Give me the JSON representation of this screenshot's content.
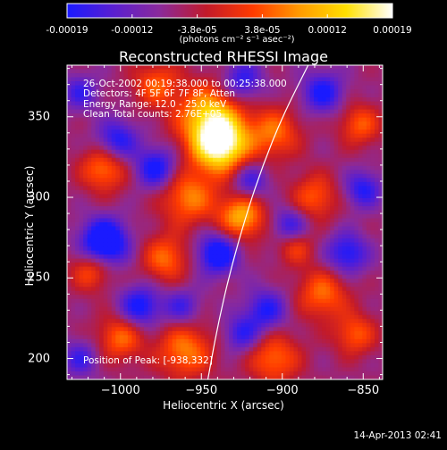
{
  "colorbar": {
    "ticks": [
      "-0.00019",
      "-0.00012",
      "-3.8e-05",
      "3.8e-05",
      "0.00012",
      "0.00019"
    ],
    "unit": "(photons cm⁻² s⁻¹ asec⁻²)",
    "range": [
      -0.00019,
      0.00019
    ],
    "colormap": [
      "#1a1aff",
      "#5a1fd0",
      "#8b2a9a",
      "#c21a2a",
      "#ff3b00",
      "#ff9a00",
      "#ffe000",
      "#ffffff"
    ]
  },
  "title": "Reconstructed RHESSI Image",
  "annotations": {
    "time": "26-Oct-2002 00:19:38.000 to 00:25:38.000",
    "detectors": "Detectors: 4F 5F 6F 7F 8F, Atten",
    "energy": "Energy Range: 12.0 - 25.0 keV",
    "clean": "Clean    Total counts: 2.76E+05",
    "peak": "Position of Peak: [-938,332]"
  },
  "footer": {
    "date": "14-Apr-2013 02:41"
  },
  "chart_data": {
    "type": "heatmap",
    "title": "Reconstructed RHESSI Image",
    "xlabel": "Heliocentric X (arcsec)",
    "ylabel": "Heliocentric Y (arcsec)",
    "xlim": [
      -1033,
      -838
    ],
    "ylim": [
      187,
      382
    ],
    "xticks": [
      -1000,
      -950,
      -900,
      -850
    ],
    "yticks": [
      200,
      250,
      300,
      350
    ],
    "xtick_labels": [
      "−1000",
      "−950",
      "−900",
      "−850"
    ],
    "ytick_labels": [
      "200",
      "250",
      "300",
      "350"
    ],
    "peak_position": [
      -938,
      332
    ],
    "limb_curve": [
      [
        -946,
        187
      ],
      [
        -940,
        220
      ],
      [
        -932,
        255
      ],
      [
        -922,
        290
      ],
      [
        -912,
        320
      ],
      [
        -900,
        350
      ],
      [
        -884,
        382
      ]
    ],
    "blobs": [
      {
        "x": -938,
        "y": 332,
        "v": 1.0,
        "s": 12
      },
      {
        "x": -945,
        "y": 350,
        "v": 0.75,
        "s": 14
      },
      {
        "x": -925,
        "y": 288,
        "v": 0.7,
        "s": 10
      },
      {
        "x": -958,
        "y": 300,
        "v": 0.55,
        "s": 12
      },
      {
        "x": -1010,
        "y": 318,
        "v": 0.55,
        "s": 10
      },
      {
        "x": -1018,
        "y": 255,
        "v": 0.45,
        "s": 9
      },
      {
        "x": -972,
        "y": 262,
        "v": 0.5,
        "s": 10
      },
      {
        "x": -960,
        "y": 205,
        "v": 0.55,
        "s": 12
      },
      {
        "x": -1000,
        "y": 213,
        "v": 0.5,
        "s": 10
      },
      {
        "x": -905,
        "y": 340,
        "v": 0.5,
        "s": 11
      },
      {
        "x": -880,
        "y": 300,
        "v": 0.45,
        "s": 10
      },
      {
        "x": -852,
        "y": 345,
        "v": 0.45,
        "s": 9
      },
      {
        "x": -875,
        "y": 240,
        "v": 0.5,
        "s": 11
      },
      {
        "x": -905,
        "y": 200,
        "v": 0.5,
        "s": 11
      },
      {
        "x": -855,
        "y": 215,
        "v": 0.45,
        "s": 9
      },
      {
        "x": -892,
        "y": 270,
        "v": 0.4,
        "s": 8
      },
      {
        "x": -978,
        "y": 370,
        "v": 0.45,
        "s": 10
      },
      {
        "x": -1002,
        "y": 335,
        "v": -0.55,
        "s": 9
      },
      {
        "x": -1010,
        "y": 272,
        "v": -0.9,
        "s": 10
      },
      {
        "x": -978,
        "y": 318,
        "v": -0.6,
        "s": 9
      },
      {
        "x": -940,
        "y": 265,
        "v": -0.7,
        "s": 9
      },
      {
        "x": -988,
        "y": 232,
        "v": -0.6,
        "s": 9
      },
      {
        "x": -962,
        "y": 232,
        "v": -0.4,
        "s": 8
      },
      {
        "x": -920,
        "y": 310,
        "v": -0.45,
        "s": 8
      },
      {
        "x": -875,
        "y": 365,
        "v": -0.55,
        "s": 9
      },
      {
        "x": -895,
        "y": 282,
        "v": -0.5,
        "s": 8
      },
      {
        "x": -860,
        "y": 265,
        "v": -0.55,
        "s": 9
      },
      {
        "x": -910,
        "y": 230,
        "v": -0.5,
        "s": 9
      },
      {
        "x": -850,
        "y": 305,
        "v": -0.5,
        "s": 8
      },
      {
        "x": -925,
        "y": 372,
        "v": -0.5,
        "s": 9
      },
      {
        "x": -1025,
        "y": 365,
        "v": -0.4,
        "s": 8
      },
      {
        "x": -1025,
        "y": 200,
        "v": -0.4,
        "s": 8
      },
      {
        "x": -925,
        "y": 215,
        "v": -0.45,
        "s": 8
      }
    ]
  }
}
